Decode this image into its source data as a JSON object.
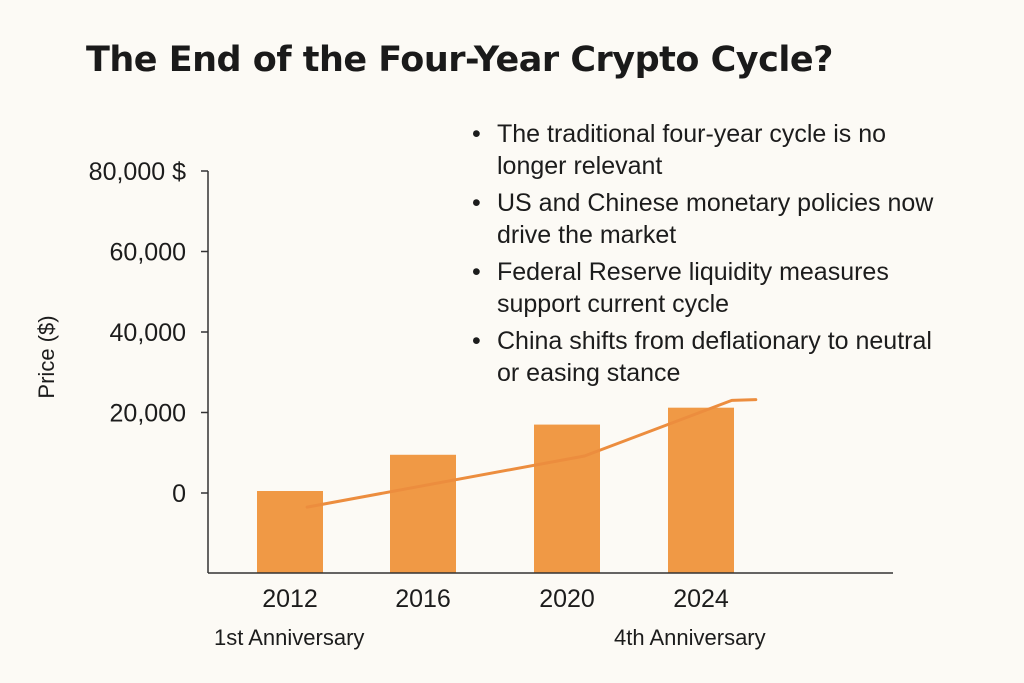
{
  "colors": {
    "background": "#fcfaf5",
    "bar": "#f09945",
    "line": "#ec8d3e",
    "axis": "#333333",
    "text": "#1c1c1c"
  },
  "bullets": [
    "The traditional four-year cycle is no longer relevant",
    "US and Chinese monetary policies now drive the market",
    "Federal Reserve liquidity measures support current cycle",
    "China shifts from deflationary to neutral or easing stance"
  ],
  "chart_data": {
    "type": "bar",
    "title": "The End of the Four-Year Crypto Cycle?",
    "xlabel": "",
    "ylabel": "Price ($)",
    "ylim": [
      -20000,
      80000
    ],
    "yticks": [
      {
        "value": 80000,
        "label": "80,000 $"
      },
      {
        "value": 60000,
        "label": "60,000"
      },
      {
        "value": 40000,
        "label": "40,000"
      },
      {
        "value": 20000,
        "label": "20,000"
      },
      {
        "value": 0,
        "label": "0"
      }
    ],
    "categories": [
      "2012",
      "2016",
      "2020",
      "2024"
    ],
    "values": [
      0,
      9000,
      16500,
      20700
    ],
    "trend_line": {
      "x": [
        2012.5,
        2020.6,
        2024.9,
        2025.6
      ],
      "y": [
        -3500,
        9200,
        23000,
        23200
      ]
    },
    "annotations": [
      {
        "text": "1st Anniversary",
        "category": "2012",
        "anchor": "start"
      },
      {
        "text": "4th Anniversary",
        "category": "2024",
        "anchor": "start"
      }
    ],
    "grid": false,
    "legend": "none"
  }
}
